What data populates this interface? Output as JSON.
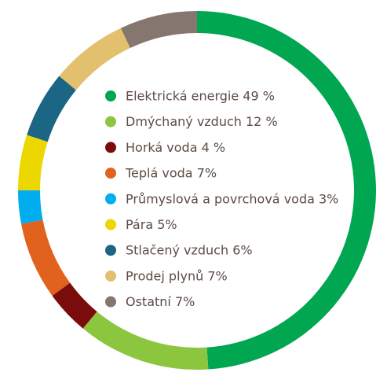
{
  "chart_data": {
    "type": "donut",
    "categories": [
      "Elektrická energie 49 %",
      "Dmýchaný vzduch 12 %",
      "Horká voda 4 %",
      "Teplá voda 7%",
      "Průmyslová a povrchová voda 3%",
      "Pára 5%",
      "Stlačený vzduch 6%",
      "Prodej plynů 7%",
      "Ostatní 7%"
    ],
    "values": [
      49,
      12,
      4,
      7,
      3,
      5,
      6,
      7,
      7
    ],
    "colors": [
      "#00a650",
      "#8cc63f",
      "#7a0c0c",
      "#e0621c",
      "#00aeef",
      "#ecd800",
      "#1b6684",
      "#e2c06e",
      "#857670"
    ]
  }
}
